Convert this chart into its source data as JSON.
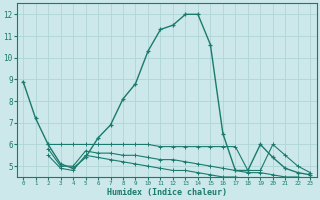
{
  "xlabel": "Humidex (Indice chaleur)",
  "ylabel": "",
  "xlim": [
    -0.5,
    23.5
  ],
  "ylim": [
    4.5,
    12.5
  ],
  "yticks": [
    5,
    6,
    7,
    8,
    9,
    10,
    11,
    12
  ],
  "xticks": [
    0,
    1,
    2,
    3,
    4,
    5,
    6,
    7,
    8,
    9,
    10,
    11,
    12,
    13,
    14,
    15,
    16,
    17,
    18,
    19,
    20,
    21,
    22,
    23
  ],
  "bg_color": "#cce8ea",
  "line_color": "#1a7a6e",
  "grid_color": "#b0d4d8",
  "series1_x": [
    0,
    1,
    2,
    3,
    4,
    5,
    6,
    7,
    8,
    9,
    10,
    11,
    12,
    13,
    14,
    15,
    16,
    17,
    18,
    19,
    20,
    21,
    22,
    23
  ],
  "series1_y": [
    8.9,
    7.2,
    6.0,
    5.1,
    4.9,
    5.4,
    6.3,
    6.9,
    8.1,
    8.8,
    10.3,
    11.3,
    11.5,
    12.0,
    12.0,
    10.6,
    6.5,
    4.8,
    4.8,
    6.0,
    5.4,
    4.9,
    4.7,
    4.6
  ],
  "series2_x": [
    2,
    3,
    4,
    5,
    6,
    7,
    8,
    9,
    10,
    11,
    12,
    13,
    14,
    15,
    16,
    17,
    18,
    19,
    20,
    21,
    22,
    23
  ],
  "series2_y": [
    6.0,
    6.0,
    6.0,
    6.0,
    6.0,
    6.0,
    6.0,
    6.0,
    6.0,
    5.9,
    5.9,
    5.9,
    5.9,
    5.9,
    5.9,
    5.9,
    4.8,
    4.8,
    6.0,
    5.5,
    5.0,
    4.7
  ],
  "series3_x": [
    2,
    3,
    4,
    5,
    6,
    7,
    8,
    9,
    10,
    11,
    12,
    13,
    14,
    15,
    16,
    17,
    18,
    19,
    20,
    21,
    22,
    23
  ],
  "series3_y": [
    5.8,
    5.0,
    5.0,
    5.7,
    5.6,
    5.6,
    5.5,
    5.5,
    5.4,
    5.3,
    5.3,
    5.2,
    5.1,
    5.0,
    4.9,
    4.8,
    4.7,
    4.7,
    4.6,
    4.5,
    4.5,
    4.4
  ],
  "series4_x": [
    2,
    3,
    4,
    5,
    6,
    7,
    8,
    9,
    10,
    11,
    12,
    13,
    14,
    15,
    16,
    17,
    18,
    19,
    20,
    21,
    22,
    23
  ],
  "series4_y": [
    5.5,
    4.9,
    4.8,
    5.5,
    5.4,
    5.3,
    5.2,
    5.1,
    5.0,
    4.9,
    4.8,
    4.8,
    4.7,
    4.6,
    4.5,
    4.5,
    4.4,
    4.4,
    4.3,
    4.3,
    4.3,
    4.2
  ]
}
